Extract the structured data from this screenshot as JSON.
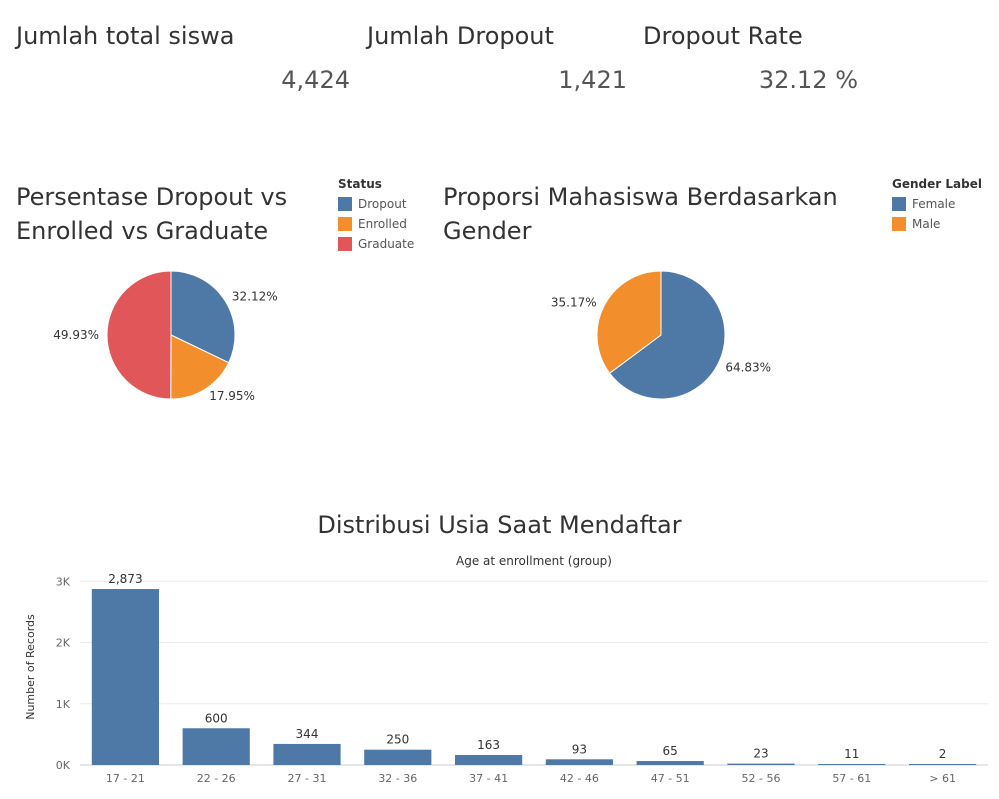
{
  "kpis": [
    {
      "title": "Jumlah total siswa",
      "value": "4,424"
    },
    {
      "title": "Jumlah Dropout",
      "value": "1,421"
    },
    {
      "title": "Dropout Rate",
      "value": "32.12 %"
    }
  ],
  "pie_status": {
    "title": "Persentase Dropout vs Enrolled vs Graduate",
    "legend_title": "Status",
    "legend": [
      {
        "label": "Dropout",
        "color": "#4e79a7"
      },
      {
        "label": "Enrolled",
        "color": "#f28e2b"
      },
      {
        "label": "Graduate",
        "color": "#e15759"
      }
    ]
  },
  "pie_gender": {
    "title": "Proporsi Mahasiswa Berdasarkan Gender",
    "legend_title": "Gender Label",
    "legend": [
      {
        "label": "Female",
        "color": "#4e79a7"
      },
      {
        "label": "Male",
        "color": "#f28e2b"
      }
    ]
  },
  "bar_section": {
    "title": "Distribusi Usia Saat Mendaftar"
  },
  "chart_data": [
    {
      "type": "pie",
      "title": "Persentase Dropout vs Enrolled vs Graduate",
      "slices": [
        {
          "label": "Dropout",
          "value": 32.12,
          "display": "32.12%",
          "color": "#4e79a7"
        },
        {
          "label": "Enrolled",
          "value": 17.95,
          "display": "17.95%",
          "color": "#f28e2b"
        },
        {
          "label": "Graduate",
          "value": 49.93,
          "display": "49.93%",
          "color": "#e15759"
        }
      ]
    },
    {
      "type": "pie",
      "title": "Proporsi Mahasiswa Berdasarkan Gender",
      "slices": [
        {
          "label": "Female",
          "value": 64.83,
          "display": "64.83%",
          "color": "#4e79a7"
        },
        {
          "label": "Male",
          "value": 35.17,
          "display": "35.17%",
          "color": "#f28e2b"
        }
      ]
    },
    {
      "type": "bar",
      "title": "Distribusi Usia Saat Mendaftar",
      "xlabel": "Age at enrollment (group)",
      "ylabel": "Number of Records",
      "categories": [
        "17 - 21",
        "22 - 26",
        "27 - 31",
        "32 - 36",
        "37 - 41",
        "42 - 46",
        "47 - 51",
        "52 - 56",
        "57 - 61",
        "> 61"
      ],
      "values": [
        2873,
        600,
        344,
        250,
        163,
        93,
        65,
        23,
        11,
        2
      ],
      "value_labels": [
        "2,873",
        "600",
        "344",
        "250",
        "163",
        "93",
        "65",
        "23",
        "11",
        "2"
      ],
      "yticks": [
        0,
        1000,
        2000,
        3000
      ],
      "ytick_labels": [
        "0K",
        "1K",
        "2K",
        "3K"
      ],
      "ylim": [
        0,
        3200
      ],
      "grid": true,
      "color": "#4e79a7"
    }
  ]
}
